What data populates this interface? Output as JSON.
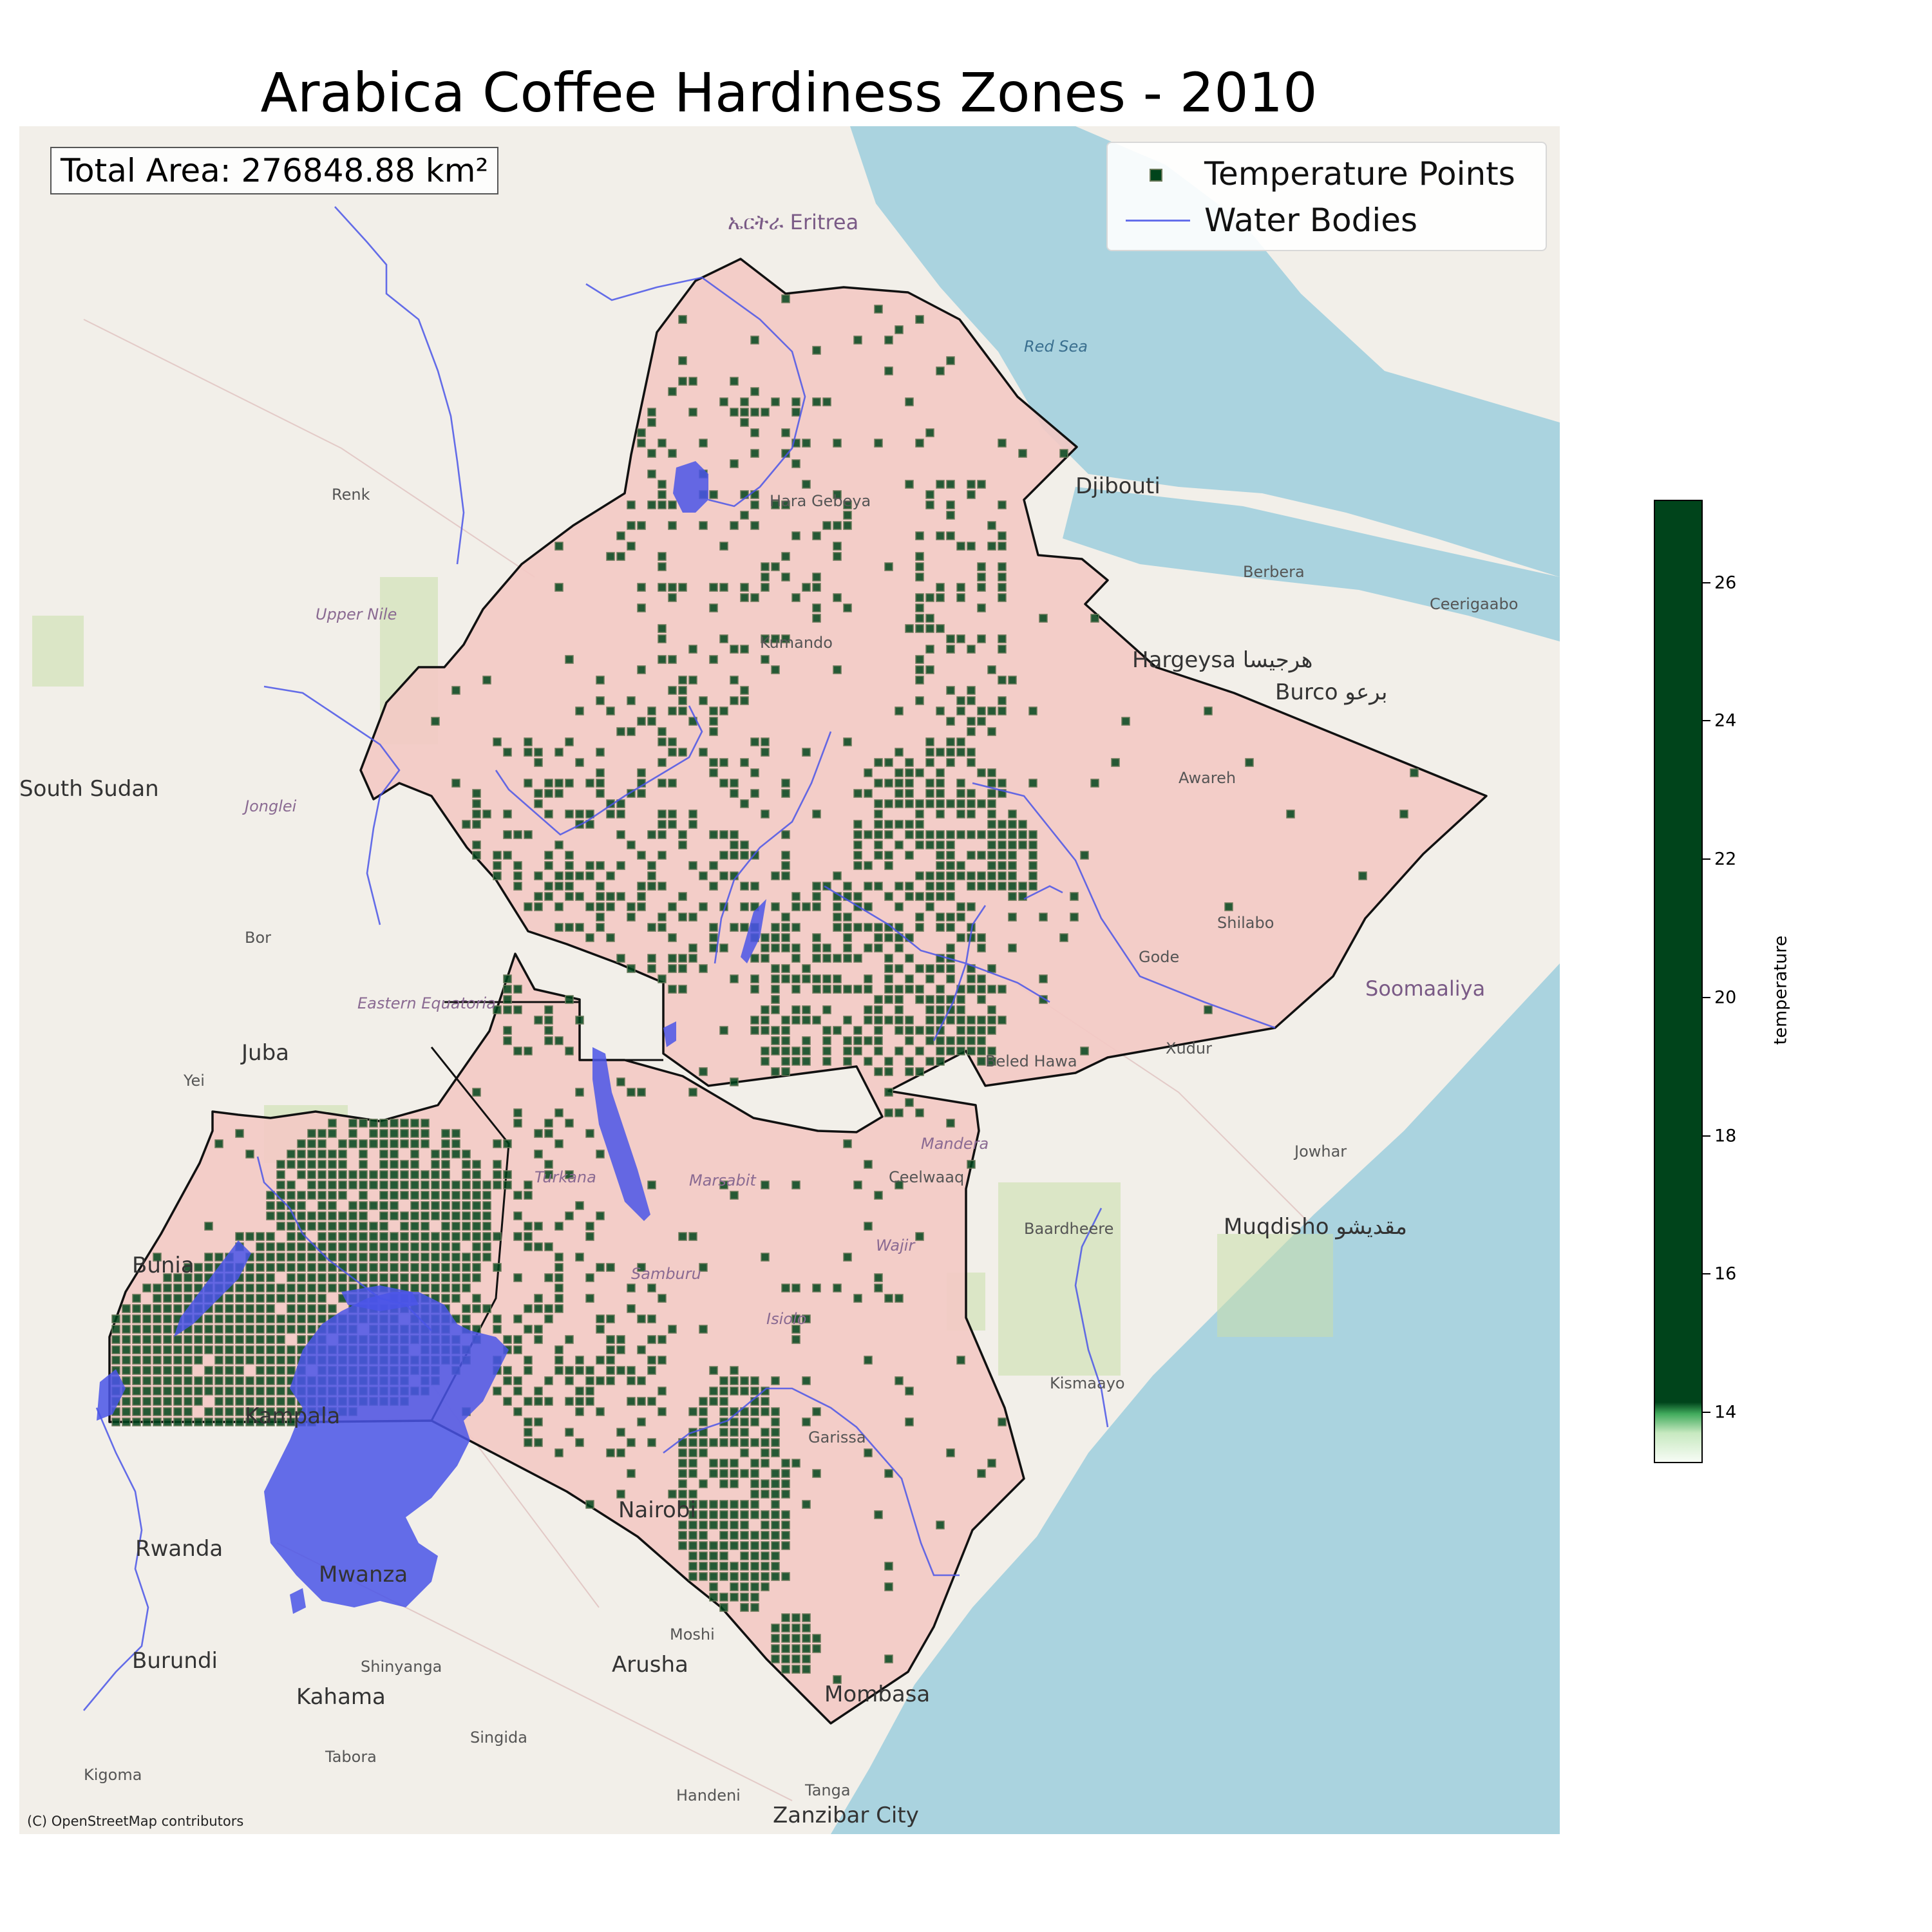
{
  "title": "Arabica Coffee Hardiness Zones - 2010",
  "total_area": "Total Area: 276848.88 km²",
  "legend": {
    "points_label": "Temperature Points",
    "water_label": "Water Bodies"
  },
  "attribution": "(C) OpenStreetMap contributors",
  "colorbar": {
    "label": "temperature",
    "ticks": [
      "14",
      "16",
      "18",
      "20",
      "22",
      "24",
      "26"
    ],
    "min": 13.3,
    "max": 27.2
  },
  "colors": {
    "land": "#f2efe9",
    "sea": "#aad3df",
    "region_fill": "#f3c9c4",
    "border": "#111111",
    "points": "#00441b",
    "point_edge": "#6b7a5a",
    "water": "#4a55e8"
  },
  "places": {
    "eritrea": "ኤርትራ Eritrea",
    "djibouti": "Djibouti",
    "south_sudan": "South Sudan",
    "juba": "Juba",
    "hargeysa": "Hargeysa هرجيسا",
    "burco": "Burco برعو",
    "mogadishu": "Muqdisho مقديشو",
    "nairobi": "Nairobi",
    "mombasa": "Mombasa",
    "arusha": "Arusha",
    "mwanza": "Mwanza",
    "kampala": "Kampala",
    "rwanda": "Rwanda",
    "burundi": "Burundi",
    "somaaliya": "Soomaaliya",
    "red_sea": "Red Sea",
    "garissa": "Garissa",
    "kismaayo": "Kismaayo",
    "bunia": "Bunia",
    "kahama": "Kahama",
    "zanzibar": "Zanzibar City",
    "tanga": "Tanga",
    "gode": "Gode",
    "shilabo": "Shilabo",
    "awareh": "Awareh",
    "renk": "Renk",
    "kumando": "Kumando",
    "hara_gebeya": "Hara Gebeya",
    "berbera": "Berbera",
    "ceerigaabo": "Ceerigaabo",
    "xudur": "Xudur",
    "beled_hawa": "Beled Hawa",
    "jowhar": "Jowhar",
    "baardheere": "Baardheere",
    "ceelwaaq": "Ceelwaaq",
    "moshi": "Moshi",
    "shinyanga": "Shinyanga",
    "kigoma": "Kigoma",
    "tabora": "Tabora",
    "singida": "Singida",
    "handeni": "Handeni",
    "yei": "Yei",
    "bor": "Bor",
    "marsabit": "Marsabit",
    "turkana": "Turkana",
    "samburu": "Samburu",
    "isiolo": "Isiolo",
    "mandera": "Mandera",
    "wajir": "Wajir",
    "jonglei": "Jonglei",
    "upper_nile": "Upper Nile",
    "eastern_equatoria": "Eastern Equatoria"
  }
}
